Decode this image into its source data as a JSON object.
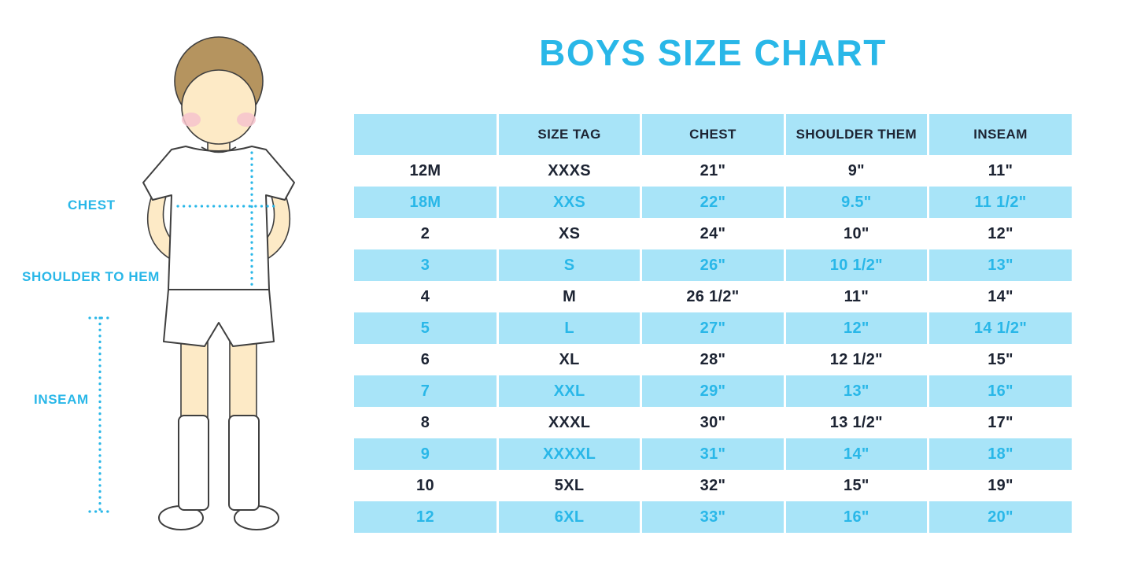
{
  "title": "BOYS SIZE CHART",
  "figure": {
    "labels": {
      "chest": "CHEST",
      "shoulder_to_hem": "SHOULDER TO HEM",
      "inseam": "INSEAM"
    }
  },
  "chart_data": {
    "type": "table",
    "columns": [
      "",
      "SIZE TAG",
      "CHEST",
      "SHOULDER THEM",
      "INSEAM"
    ],
    "rows": [
      [
        "12M",
        "XXXS",
        "21\"",
        "9\"",
        "11\""
      ],
      [
        "18M",
        "XXS",
        "22\"",
        "9.5\"",
        "11 1/2\""
      ],
      [
        "2",
        "XS",
        "24\"",
        "10\"",
        "12\""
      ],
      [
        "3",
        "S",
        "26\"",
        "10 1/2\"",
        "13\""
      ],
      [
        "4",
        "M",
        "26 1/2\"",
        "11\"",
        "14\""
      ],
      [
        "5",
        "L",
        "27\"",
        "12\"",
        "14 1/2\""
      ],
      [
        "6",
        "XL",
        "28\"",
        "12 1/2\"",
        "15\""
      ],
      [
        "7",
        "XXL",
        "29\"",
        "13\"",
        "16\""
      ],
      [
        "8",
        "XXXL",
        "30\"",
        "13 1/2\"",
        "17\""
      ],
      [
        "9",
        "XXXXL",
        "31\"",
        "14\"",
        "18\""
      ],
      [
        "10",
        "5XL",
        "32\"",
        "15\"",
        "19\""
      ],
      [
        "12",
        "6XL",
        "33\"",
        "16\"",
        "20\""
      ]
    ],
    "row_striping": "white rows use dark text, light-blue rows use accent text",
    "legend_position": "none",
    "grid": false
  },
  "colors": {
    "accent": "#29b7e8",
    "row_highlight": "#a8e4f8",
    "text_dark": "#1d2433"
  }
}
